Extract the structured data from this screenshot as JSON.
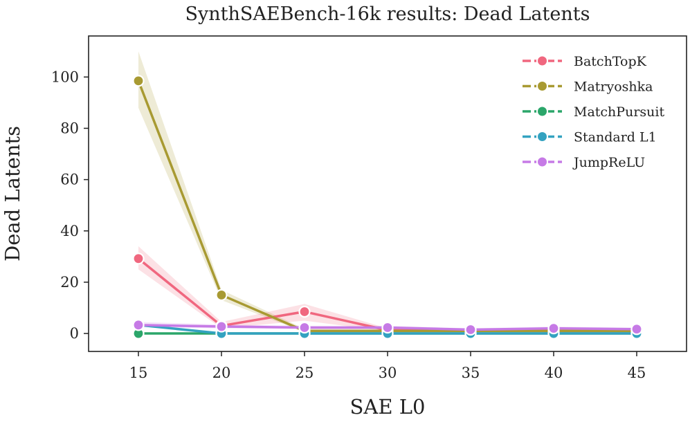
{
  "chart_data": {
    "type": "line",
    "title": "SynthSAEBench-16k results: Dead Latents",
    "xlabel": "SAE L0",
    "ylabel": "Dead Latents",
    "x": [
      15,
      20,
      25,
      30,
      35,
      40,
      45
    ],
    "xticks": [
      15,
      20,
      25,
      30,
      35,
      40,
      45
    ],
    "yticks": [
      0,
      20,
      40,
      60,
      80,
      100
    ],
    "xlim": [
      12,
      48
    ],
    "ylim": [
      -7,
      116
    ],
    "grid": false,
    "legend_position": "top-right",
    "series": [
      {
        "name": "BatchTopK",
        "color": "#f0677f",
        "values": [
          29.2,
          3.0,
          8.5,
          1.3,
          1.2,
          1.0,
          1.0
        ],
        "ci_low": [
          25,
          2.0,
          5.0,
          0.8,
          0.7,
          0.6,
          0.6
        ],
        "ci_high": [
          34,
          4.5,
          11.5,
          2.0,
          1.8,
          1.5,
          1.5
        ]
      },
      {
        "name": "Matryoshka",
        "color": "#a89a32",
        "values": [
          98.5,
          15.0,
          1.0,
          1.0,
          1.0,
          1.0,
          1.0
        ],
        "ci_low": [
          88,
          13.0,
          0.5,
          0.5,
          0.5,
          0.5,
          0.5
        ],
        "ci_high": [
          110,
          17.0,
          1.8,
          1.8,
          1.8,
          1.8,
          1.8
        ]
      },
      {
        "name": "MatchPursuit",
        "color": "#2ba66a",
        "values": [
          0,
          0,
          0,
          0,
          0,
          0,
          0
        ],
        "ci_low": [
          0,
          0,
          0,
          0,
          0,
          0,
          0
        ],
        "ci_high": [
          0,
          0,
          0,
          0,
          0,
          0,
          0
        ]
      },
      {
        "name": "Standard L1",
        "color": "#33a2c0",
        "values": [
          3.3,
          0,
          0,
          0,
          0,
          0,
          0
        ],
        "ci_low": [
          2.8,
          0,
          0,
          0,
          0,
          0,
          0
        ],
        "ci_high": [
          3.8,
          0,
          0,
          0,
          0,
          0,
          0
        ]
      },
      {
        "name": "JumpReLU",
        "color": "#c67ae6",
        "values": [
          3.3,
          2.7,
          2.3,
          2.3,
          1.5,
          2.0,
          1.7
        ],
        "ci_low": [
          2.5,
          2.0,
          1.8,
          1.8,
          1.0,
          1.5,
          1.2
        ],
        "ci_high": [
          4.5,
          3.5,
          3.0,
          3.0,
          2.0,
          2.7,
          2.2
        ]
      }
    ]
  }
}
